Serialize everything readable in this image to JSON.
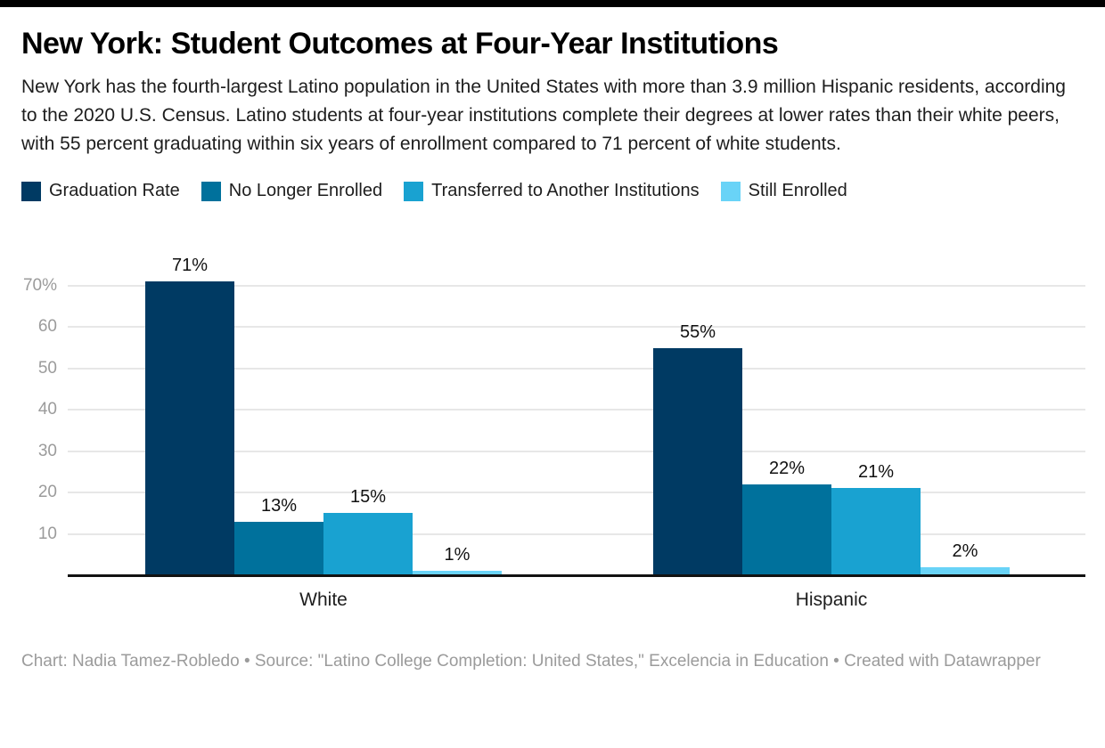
{
  "page": {
    "title": "New York: Student Outcomes at Four-Year Institutions",
    "description": "New York has the fourth-largest Latino population in the United States with more than 3.9 million Hispanic residents, according to the 2020 U.S. Census. Latino students at four-year institutions complete their degrees at lower rates than their white peers, with 55 percent graduating within six years of enrollment compared to 71 percent of white students.",
    "footer": "Chart: Nadia Tamez-Robledo • Source: \"Latino College Completion: United States,\" Excelencia in Education • Created with Datawrapper"
  },
  "colors": {
    "accent_bar": "#000000",
    "gridline": "#e7e7e7",
    "axis_line": "#121212",
    "tick_label": "#9b9b9b",
    "footer_text": "#9b9b9b"
  },
  "chart_data": {
    "type": "bar",
    "title": "New York: Student Outcomes at Four-Year Institutions",
    "categories": [
      "White",
      "Hispanic"
    ],
    "series": [
      {
        "name": "Graduation Rate",
        "color": "#003a63",
        "values": [
          71,
          55
        ]
      },
      {
        "name": "No Longer Enrolled",
        "color": "#00719c",
        "values": [
          13,
          22
        ]
      },
      {
        "name": "Transferred to Another Institutions",
        "color": "#19a2d1",
        "values": [
          15,
          21
        ]
      },
      {
        "name": "Still Enrolled",
        "color": "#69d3f7",
        "values": [
          1,
          2
        ]
      }
    ],
    "value_suffix": "%",
    "data_labels": [
      "71%",
      "13%",
      "15%",
      "1%",
      "55%",
      "22%",
      "21%",
      "2%"
    ],
    "y_ticks": [
      10,
      20,
      30,
      40,
      50,
      60,
      70
    ],
    "y_tick_labels": [
      "10",
      "20",
      "30",
      "40",
      "50",
      "60",
      "70%"
    ],
    "ylim": [
      0,
      75
    ],
    "grid": true,
    "legend_position": "top",
    "xlabel": "",
    "ylabel": ""
  }
}
